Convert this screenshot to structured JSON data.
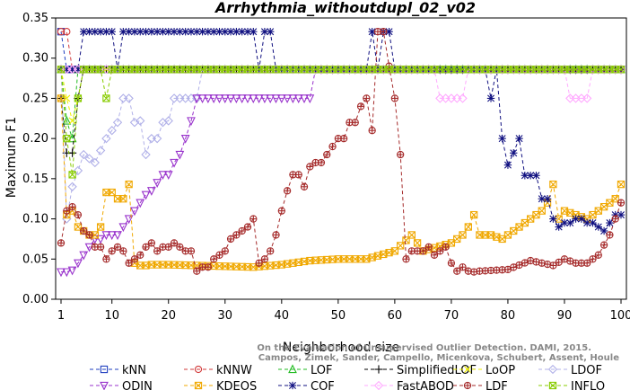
{
  "chart_data": {
    "type": "line",
    "title": "Arrhythmia_withoutdupl_02_v02",
    "xlabel": "Neighborhood size",
    "ylabel": "Maximum F1",
    "xlim": [
      1,
      100
    ],
    "ylim": [
      0,
      0.35
    ],
    "xticks": [
      1,
      10,
      20,
      30,
      40,
      50,
      60,
      70,
      80,
      90,
      100
    ],
    "yticks": [
      "0.00",
      "0.05",
      "0.10",
      "0.15",
      "0.20",
      "0.25",
      "0.30",
      "0.35"
    ],
    "grid": false,
    "legend_position": "bottom",
    "watermark": [
      "Campos, Zimek, Sander, Campello, Micenkova, Schubert, Assent, Houle",
      "On the Evaluation of Unsupervised Outlier Detection. DAMI, 2015."
    ],
    "series": [
      {
        "name": "kNN",
        "color": "#1f3fbf",
        "marker": "square",
        "points": [
          [
            1,
            0.333
          ],
          [
            2,
            0.286
          ],
          [
            3,
            0.286
          ],
          [
            4,
            0.286
          ],
          [
            100,
            0.286
          ]
        ]
      },
      {
        "name": "kNNW",
        "color": "#d23a3a",
        "marker": "circle",
        "points": [
          [
            1,
            0.333
          ],
          [
            2,
            0.333
          ],
          [
            3,
            0.286
          ],
          [
            4,
            0.286
          ],
          [
            100,
            0.286
          ]
        ]
      },
      {
        "name": "LOF",
        "color": "#22bb22",
        "marker": "triangle-up",
        "points": [
          [
            1,
            0.286
          ],
          [
            2,
            0.222
          ],
          [
            3,
            0.2
          ],
          [
            4,
            0.286
          ],
          [
            100,
            0.286
          ]
        ]
      },
      {
        "name": "SimplifiedLOF",
        "color": "#000000",
        "marker": "plus",
        "points": [
          [
            1,
            0.25
          ],
          [
            2,
            0.182
          ],
          [
            3,
            0.182
          ],
          [
            4,
            0.25
          ],
          [
            5,
            0.286
          ],
          [
            100,
            0.286
          ]
        ]
      },
      {
        "name": "LoOP",
        "color": "#eeee00",
        "marker": "x",
        "points": [
          [
            1,
            0.286
          ],
          [
            2,
            0.25
          ],
          [
            3,
            0.222
          ],
          [
            4,
            0.25
          ],
          [
            5,
            0.286
          ],
          [
            100,
            0.286
          ]
        ]
      },
      {
        "name": "LDOF",
        "color": "#b0b0e8",
        "marker": "diamond",
        "points": [
          [
            1,
            0.286
          ],
          [
            2,
            0.1
          ],
          [
            3,
            0.14
          ],
          [
            5,
            0.18
          ],
          [
            7,
            0.17
          ],
          [
            9,
            0.2
          ],
          [
            11,
            0.22
          ],
          [
            12,
            0.25
          ],
          [
            13,
            0.25
          ],
          [
            14,
            0.22
          ],
          [
            15,
            0.222
          ],
          [
            16,
            0.18
          ],
          [
            17,
            0.2
          ],
          [
            18,
            0.2
          ],
          [
            19,
            0.22
          ],
          [
            20,
            0.222
          ],
          [
            21,
            0.25
          ],
          [
            22,
            0.25
          ],
          [
            25,
            0.25
          ],
          [
            26,
            0.286
          ],
          [
            100,
            0.286
          ]
        ]
      },
      {
        "name": "ODIN",
        "color": "#9933cc",
        "marker": "triangle-down",
        "points": [
          [
            1,
            0.034
          ],
          [
            2,
            0.034
          ],
          [
            3,
            0.036
          ],
          [
            4,
            0.045
          ],
          [
            5,
            0.055
          ],
          [
            6,
            0.065
          ],
          [
            7,
            0.075
          ],
          [
            8,
            0.075
          ],
          [
            9,
            0.08
          ],
          [
            10,
            0.08
          ],
          [
            11,
            0.08
          ],
          [
            12,
            0.09
          ],
          [
            13,
            0.1
          ],
          [
            14,
            0.11
          ],
          [
            15,
            0.12
          ],
          [
            16,
            0.13
          ],
          [
            17,
            0.135
          ],
          [
            18,
            0.145
          ],
          [
            19,
            0.155
          ],
          [
            20,
            0.155
          ],
          [
            21,
            0.17
          ],
          [
            22,
            0.18
          ],
          [
            23,
            0.2
          ],
          [
            24,
            0.222
          ],
          [
            25,
            0.25
          ],
          [
            45,
            0.25
          ],
          [
            46,
            0.286
          ],
          [
            100,
            0.286
          ]
        ]
      },
      {
        "name": "KDEOS",
        "color": "#f0a800",
        "marker": "square-x",
        "points": [
          [
            1,
            0.25
          ],
          [
            2,
            0.105
          ],
          [
            3,
            0.11
          ],
          [
            4,
            0.09
          ],
          [
            5,
            0.085
          ],
          [
            6,
            0.08
          ],
          [
            7,
            0.08
          ],
          [
            8,
            0.09
          ],
          [
            9,
            0.133
          ],
          [
            10,
            0.133
          ],
          [
            11,
            0.125
          ],
          [
            12,
            0.125
          ],
          [
            13,
            0.143
          ],
          [
            14,
            0.045
          ],
          [
            15,
            0.042
          ],
          [
            16,
            0.042
          ],
          [
            17,
            0.043
          ],
          [
            18,
            0.043
          ],
          [
            20,
            0.043
          ],
          [
            25,
            0.042
          ],
          [
            30,
            0.041
          ],
          [
            35,
            0.04
          ],
          [
            40,
            0.043
          ],
          [
            45,
            0.048
          ],
          [
            50,
            0.05
          ],
          [
            55,
            0.05
          ],
          [
            60,
            0.06
          ],
          [
            63,
            0.08
          ],
          [
            65,
            0.06
          ],
          [
            70,
            0.07
          ],
          [
            72,
            0.08
          ],
          [
            73,
            0.09
          ],
          [
            74,
            0.105
          ],
          [
            75,
            0.08
          ],
          [
            77,
            0.08
          ],
          [
            79,
            0.075
          ],
          [
            81,
            0.085
          ],
          [
            84,
            0.1
          ],
          [
            86,
            0.11
          ],
          [
            87,
            0.12
          ],
          [
            88,
            0.143
          ],
          [
            89,
            0.1
          ],
          [
            90,
            0.11
          ],
          [
            92,
            0.105
          ],
          [
            94,
            0.1
          ],
          [
            96,
            0.11
          ],
          [
            98,
            0.12
          ],
          [
            99,
            0.125
          ],
          [
            100,
            0.143
          ]
        ]
      },
      {
        "name": "COF",
        "color": "#101080",
        "marker": "asterisk",
        "points": [
          [
            1,
            0.286
          ],
          [
            3,
            0.286
          ],
          [
            4,
            0.286
          ],
          [
            5,
            0.333
          ],
          [
            10,
            0.333
          ],
          [
            11,
            0.286
          ],
          [
            12,
            0.333
          ],
          [
            35,
            0.333
          ],
          [
            36,
            0.286
          ],
          [
            37,
            0.333
          ],
          [
            38,
            0.333
          ],
          [
            39,
            0.286
          ],
          [
            55,
            0.286
          ],
          [
            56,
            0.333
          ],
          [
            57,
            0.286
          ],
          [
            58,
            0.333
          ],
          [
            59,
            0.333
          ],
          [
            60,
            0.286
          ],
          [
            76,
            0.286
          ],
          [
            77,
            0.25
          ],
          [
            78,
            0.286
          ],
          [
            79,
            0.2
          ],
          [
            80,
            0.167
          ],
          [
            81,
            0.182
          ],
          [
            82,
            0.2
          ],
          [
            83,
            0.154
          ],
          [
            84,
            0.154
          ],
          [
            85,
            0.154
          ],
          [
            86,
            0.125
          ],
          [
            87,
            0.125
          ],
          [
            88,
            0.1
          ],
          [
            89,
            0.09
          ],
          [
            90,
            0.095
          ],
          [
            91,
            0.095
          ],
          [
            92,
            0.1
          ],
          [
            93,
            0.1
          ],
          [
            94,
            0.095
          ],
          [
            95,
            0.095
          ],
          [
            96,
            0.09
          ],
          [
            97,
            0.085
          ],
          [
            98,
            0.095
          ],
          [
            99,
            0.105
          ],
          [
            100,
            0.105
          ]
        ]
      },
      {
        "name": "FastABOD",
        "color": "#ffaaff",
        "marker": "diamond",
        "points": [
          [
            1,
            0.286
          ],
          [
            67,
            0.286
          ],
          [
            68,
            0.25
          ],
          [
            72,
            0.25
          ],
          [
            73,
            0.286
          ],
          [
            90,
            0.286
          ],
          [
            91,
            0.25
          ],
          [
            94,
            0.25
          ],
          [
            95,
            0.286
          ],
          [
            100,
            0.286
          ]
        ]
      },
      {
        "name": "LDF",
        "color": "#a52a2a",
        "marker": "circle-plus",
        "points": [
          [
            1,
            0.07
          ],
          [
            2,
            0.11
          ],
          [
            3,
            0.115
          ],
          [
            4,
            0.105
          ],
          [
            5,
            0.085
          ],
          [
            6,
            0.08
          ],
          [
            7,
            0.065
          ],
          [
            8,
            0.065
          ],
          [
            9,
            0.05
          ],
          [
            10,
            0.06
          ],
          [
            11,
            0.065
          ],
          [
            12,
            0.06
          ],
          [
            13,
            0.045
          ],
          [
            14,
            0.05
          ],
          [
            15,
            0.055
          ],
          [
            16,
            0.065
          ],
          [
            17,
            0.07
          ],
          [
            18,
            0.06
          ],
          [
            19,
            0.065
          ],
          [
            20,
            0.065
          ],
          [
            21,
            0.07
          ],
          [
            22,
            0.065
          ],
          [
            23,
            0.06
          ],
          [
            24,
            0.06
          ],
          [
            25,
            0.035
          ],
          [
            26,
            0.04
          ],
          [
            27,
            0.04
          ],
          [
            28,
            0.05
          ],
          [
            29,
            0.055
          ],
          [
            30,
            0.06
          ],
          [
            31,
            0.075
          ],
          [
            32,
            0.08
          ],
          [
            33,
            0.085
          ],
          [
            34,
            0.09
          ],
          [
            35,
            0.1
          ],
          [
            36,
            0.045
          ],
          [
            37,
            0.05
          ],
          [
            38,
            0.06
          ],
          [
            39,
            0.08
          ],
          [
            40,
            0.11
          ],
          [
            41,
            0.135
          ],
          [
            42,
            0.155
          ],
          [
            43,
            0.155
          ],
          [
            44,
            0.14
          ],
          [
            45,
            0.165
          ],
          [
            46,
            0.17
          ],
          [
            47,
            0.17
          ],
          [
            48,
            0.18
          ],
          [
            49,
            0.19
          ],
          [
            50,
            0.2
          ],
          [
            51,
            0.2
          ],
          [
            52,
            0.22
          ],
          [
            53,
            0.22
          ],
          [
            54,
            0.24
          ],
          [
            55,
            0.25
          ],
          [
            56,
            0.21
          ],
          [
            57,
            0.333
          ],
          [
            58,
            0.333
          ],
          [
            59,
            0.29
          ],
          [
            60,
            0.25
          ],
          [
            61,
            0.18
          ],
          [
            62,
            0.05
          ],
          [
            63,
            0.06
          ],
          [
            64,
            0.06
          ],
          [
            65,
            0.06
          ],
          [
            66,
            0.065
          ],
          [
            67,
            0.055
          ],
          [
            68,
            0.06
          ],
          [
            69,
            0.065
          ],
          [
            70,
            0.045
          ],
          [
            71,
            0.035
          ],
          [
            72,
            0.04
          ],
          [
            73,
            0.035
          ],
          [
            74,
            0.034
          ],
          [
            75,
            0.035
          ],
          [
            80,
            0.037
          ],
          [
            84,
            0.048
          ],
          [
            86,
            0.045
          ],
          [
            88,
            0.042
          ],
          [
            90,
            0.05
          ],
          [
            92,
            0.045
          ],
          [
            94,
            0.045
          ],
          [
            96,
            0.055
          ],
          [
            98,
            0.08
          ],
          [
            100,
            0.12
          ]
        ]
      },
      {
        "name": "INFLO",
        "color": "#88cc00",
        "marker": "square-x",
        "points": [
          [
            1,
            0.286
          ],
          [
            2,
            0.2
          ],
          [
            3,
            0.155
          ],
          [
            4,
            0.25
          ],
          [
            5,
            0.286
          ],
          [
            8,
            0.286
          ],
          [
            9,
            0.25
          ],
          [
            10,
            0.286
          ],
          [
            100,
            0.286
          ]
        ]
      }
    ]
  }
}
